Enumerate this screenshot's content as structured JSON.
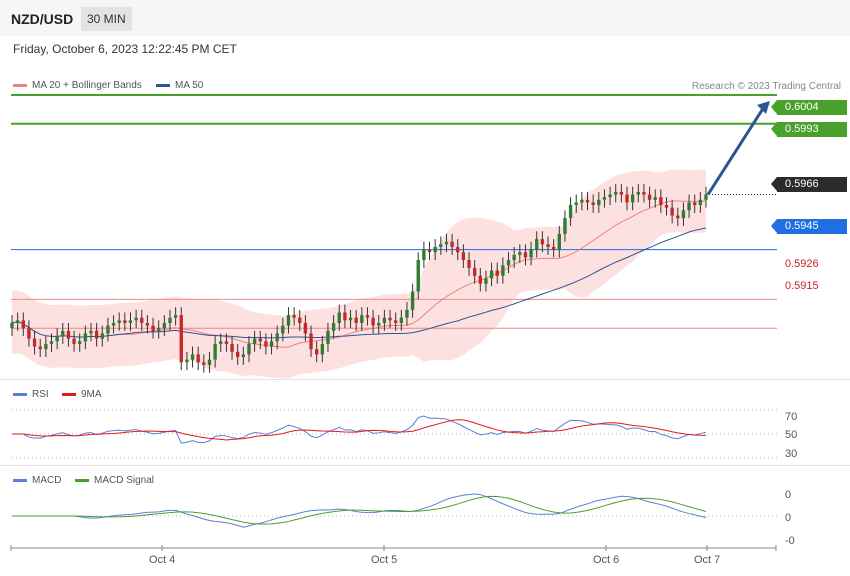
{
  "header": {
    "pair": "NZD/USD",
    "timeframe": "30 MIN"
  },
  "datetime": "Friday, October 6, 2023 12:22:45 PM CET",
  "legend": {
    "main": [
      {
        "label": "MA 20 + Bollinger Bands",
        "color": "#f08080"
      },
      {
        "label": "MA 50",
        "color": "#2c5596"
      }
    ],
    "rsi": [
      {
        "label": "RSI",
        "color": "#5b7fd9"
      },
      {
        "label": "9MA",
        "color": "#e31a1a"
      }
    ],
    "macd": [
      {
        "label": "MACD",
        "color": "#5b7fd9"
      },
      {
        "label": "MACD Signal",
        "color": "#4aa02c"
      }
    ]
  },
  "credit": "Research © 2023 Trading Central",
  "price_levels": [
    {
      "value": "0.6004",
      "kind": "target",
      "color": "#4aa02c"
    },
    {
      "value": "0.5993",
      "kind": "target",
      "color": "#4aa02c"
    },
    {
      "value": "0.5966",
      "kind": "last",
      "color": "#222222"
    },
    {
      "value": "0.5945",
      "kind": "pivot",
      "color": "#1f6fe0"
    },
    {
      "value": "0.5926",
      "kind": "support",
      "color": "#cc2222"
    },
    {
      "value": "0.5915",
      "kind": "support",
      "color": "#cc2222"
    }
  ],
  "rsi_axis": [
    "70",
    "50",
    "30"
  ],
  "macd_axis": [
    "0",
    "0",
    "-0"
  ],
  "time_axis": [
    "Oct 4",
    "Oct 5",
    "Oct 6",
    "Oct 7"
  ],
  "chart_data": {
    "type": "candlestick",
    "instrument": "NZD/USD",
    "timeframe": "30 MIN",
    "y_range": [
      0.5896,
      0.6012
    ],
    "levels": [
      0.6004,
      0.5993,
      0.5966,
      0.5945,
      0.5926,
      0.5915
    ],
    "close_series": [
      0.5917,
      0.5918,
      0.5915,
      0.5911,
      0.5908,
      0.5907,
      0.5909,
      0.591,
      0.5912,
      0.5914,
      0.5911,
      0.5909,
      0.591,
      0.5913,
      0.5914,
      0.5911,
      0.5913,
      0.5916,
      0.5917,
      0.5918,
      0.5917,
      0.5918,
      0.5919,
      0.5917,
      0.5916,
      0.5914,
      0.5915,
      0.5917,
      0.5919,
      0.592,
      0.5902,
      0.5903,
      0.5905,
      0.5902,
      0.5901,
      0.5903,
      0.5909,
      0.591,
      0.5909,
      0.5906,
      0.5904,
      0.5905,
      0.5909,
      0.5911,
      0.591,
      0.5908,
      0.591,
      0.5913,
      0.5916,
      0.592,
      0.5919,
      0.5917,
      0.5913,
      0.5907,
      0.5905,
      0.5909,
      0.5914,
      0.5917,
      0.5921,
      0.5918,
      0.5919,
      0.5917,
      0.592,
      0.5919,
      0.5916,
      0.5917,
      0.5919,
      0.5918,
      0.5917,
      0.5919,
      0.5922,
      0.5929,
      0.5941,
      0.5945,
      0.5944,
      0.5946,
      0.5947,
      0.5948,
      0.5946,
      0.5944,
      0.5941,
      0.5938,
      0.5935,
      0.5932,
      0.5934,
      0.5937,
      0.5935,
      0.5939,
      0.5941,
      0.5943,
      0.5944,
      0.5942,
      0.5945,
      0.5949,
      0.5947,
      0.5946,
      0.5945,
      0.5951,
      0.5957,
      0.5962,
      0.5963,
      0.5964,
      0.5963,
      0.5962,
      0.5964,
      0.5965,
      0.5966,
      0.5967,
      0.5966,
      0.5963,
      0.5966,
      0.5967,
      0.5966,
      0.5964,
      0.5965,
      0.5962,
      0.5961,
      0.5958,
      0.5957,
      0.596,
      0.5963,
      0.5962,
      0.5964,
      0.5966
    ],
    "rsi": {
      "values_range": [
        30,
        70
      ]
    },
    "macd": {
      "note": "MACD and signal oscillate around 0"
    },
    "x_ticks": [
      "Oct 4",
      "Oct 5",
      "Oct 6",
      "Oct 7"
    ]
  }
}
